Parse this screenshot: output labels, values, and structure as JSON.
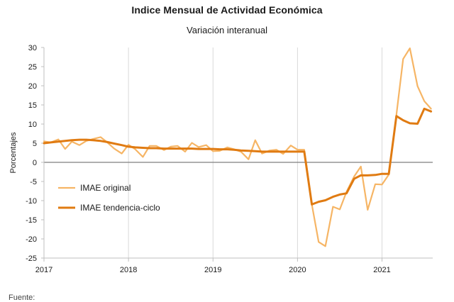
{
  "title": "Indice Mensual de  Actividad Económica",
  "subtitle": "Variación interanual",
  "footer": "Fuente:",
  "chart_data": {
    "type": "line",
    "ylabel": "Porcentajes",
    "xlabel": "",
    "ylim": [
      -25,
      30
    ],
    "yticks": [
      -25,
      -20,
      -15,
      -10,
      -5,
      0,
      5,
      10,
      15,
      20,
      25,
      30
    ],
    "xlim": [
      2017.0,
      2021.6
    ],
    "xtick_labels": [
      "2017",
      "2018",
      "2019",
      "2020",
      "2021"
    ],
    "grid": "vertical",
    "legend": "bottom-left",
    "series": [
      {
        "name": "IMAE original",
        "color": "#f6b565",
        "points": [
          [
            2017.0,
            5.5
          ],
          [
            2017.08,
            5.2
          ],
          [
            2017.17,
            6.0
          ],
          [
            2017.25,
            3.5
          ],
          [
            2017.33,
            5.4
          ],
          [
            2017.42,
            4.5
          ],
          [
            2017.5,
            5.6
          ],
          [
            2017.58,
            6.1
          ],
          [
            2017.67,
            6.6
          ],
          [
            2017.75,
            5.2
          ],
          [
            2017.83,
            3.6
          ],
          [
            2017.92,
            2.3
          ],
          [
            2018.0,
            4.6
          ],
          [
            2018.08,
            3.4
          ],
          [
            2018.17,
            1.4
          ],
          [
            2018.25,
            4.3
          ],
          [
            2018.33,
            4.3
          ],
          [
            2018.42,
            3.2
          ],
          [
            2018.5,
            4.1
          ],
          [
            2018.58,
            4.3
          ],
          [
            2018.67,
            2.8
          ],
          [
            2018.75,
            5.1
          ],
          [
            2018.83,
            4.0
          ],
          [
            2018.92,
            4.5
          ],
          [
            2019.0,
            2.9
          ],
          [
            2019.08,
            3.0
          ],
          [
            2019.17,
            3.9
          ],
          [
            2019.25,
            3.4
          ],
          [
            2019.33,
            2.8
          ],
          [
            2019.42,
            0.8
          ],
          [
            2019.5,
            5.8
          ],
          [
            2019.58,
            2.3
          ],
          [
            2019.67,
            3.1
          ],
          [
            2019.75,
            3.3
          ],
          [
            2019.83,
            2.2
          ],
          [
            2019.92,
            4.4
          ],
          [
            2020.0,
            3.3
          ],
          [
            2020.08,
            3.3
          ],
          [
            2020.17,
            -11.0
          ],
          [
            2020.25,
            -20.8
          ],
          [
            2020.33,
            -21.9
          ],
          [
            2020.42,
            -11.6
          ],
          [
            2020.5,
            -12.3
          ],
          [
            2020.58,
            -7.7
          ],
          [
            2020.67,
            -3.7
          ],
          [
            2020.75,
            -1.1
          ],
          [
            2020.83,
            -12.4
          ],
          [
            2020.92,
            -5.7
          ],
          [
            2021.0,
            -5.8
          ],
          [
            2021.08,
            -3.2
          ],
          [
            2021.17,
            12.4
          ],
          [
            2021.25,
            27.0
          ],
          [
            2021.33,
            29.8
          ],
          [
            2021.42,
            19.9
          ],
          [
            2021.5,
            16.0
          ],
          [
            2021.58,
            14.0
          ]
        ]
      },
      {
        "name": "IMAE tendencia-ciclo",
        "color": "#e07b12",
        "points": [
          [
            2017.0,
            5.0
          ],
          [
            2017.08,
            5.2
          ],
          [
            2017.17,
            5.4
          ],
          [
            2017.25,
            5.6
          ],
          [
            2017.33,
            5.8
          ],
          [
            2017.42,
            5.9
          ],
          [
            2017.5,
            5.9
          ],
          [
            2017.58,
            5.8
          ],
          [
            2017.67,
            5.6
          ],
          [
            2017.75,
            5.3
          ],
          [
            2017.83,
            4.9
          ],
          [
            2017.92,
            4.5
          ],
          [
            2018.0,
            4.1
          ],
          [
            2018.08,
            3.9
          ],
          [
            2018.17,
            3.8
          ],
          [
            2018.25,
            3.7
          ],
          [
            2018.33,
            3.7
          ],
          [
            2018.42,
            3.6
          ],
          [
            2018.5,
            3.6
          ],
          [
            2018.58,
            3.6
          ],
          [
            2018.67,
            3.6
          ],
          [
            2018.75,
            3.6
          ],
          [
            2018.83,
            3.5
          ],
          [
            2018.92,
            3.5
          ],
          [
            2019.0,
            3.5
          ],
          [
            2019.08,
            3.4
          ],
          [
            2019.17,
            3.4
          ],
          [
            2019.25,
            3.3
          ],
          [
            2019.33,
            3.1
          ],
          [
            2019.42,
            3.0
          ],
          [
            2019.5,
            2.9
          ],
          [
            2019.58,
            2.8
          ],
          [
            2019.67,
            2.8
          ],
          [
            2019.75,
            2.8
          ],
          [
            2019.83,
            2.8
          ],
          [
            2019.92,
            2.8
          ],
          [
            2020.0,
            2.8
          ],
          [
            2020.08,
            2.8
          ],
          [
            2020.17,
            -11.0
          ],
          [
            2020.25,
            -10.3
          ],
          [
            2020.33,
            -9.9
          ],
          [
            2020.42,
            -9.0
          ],
          [
            2020.5,
            -8.4
          ],
          [
            2020.58,
            -8.1
          ],
          [
            2020.67,
            -4.3
          ],
          [
            2020.75,
            -3.4
          ],
          [
            2020.83,
            -3.4
          ],
          [
            2020.92,
            -3.3
          ],
          [
            2021.0,
            -3.0
          ],
          [
            2021.08,
            -3.0
          ],
          [
            2021.17,
            12.1
          ],
          [
            2021.25,
            11.0
          ],
          [
            2021.33,
            10.2
          ],
          [
            2021.42,
            10.1
          ],
          [
            2021.5,
            14.0
          ],
          [
            2021.58,
            13.3
          ]
        ]
      }
    ]
  }
}
